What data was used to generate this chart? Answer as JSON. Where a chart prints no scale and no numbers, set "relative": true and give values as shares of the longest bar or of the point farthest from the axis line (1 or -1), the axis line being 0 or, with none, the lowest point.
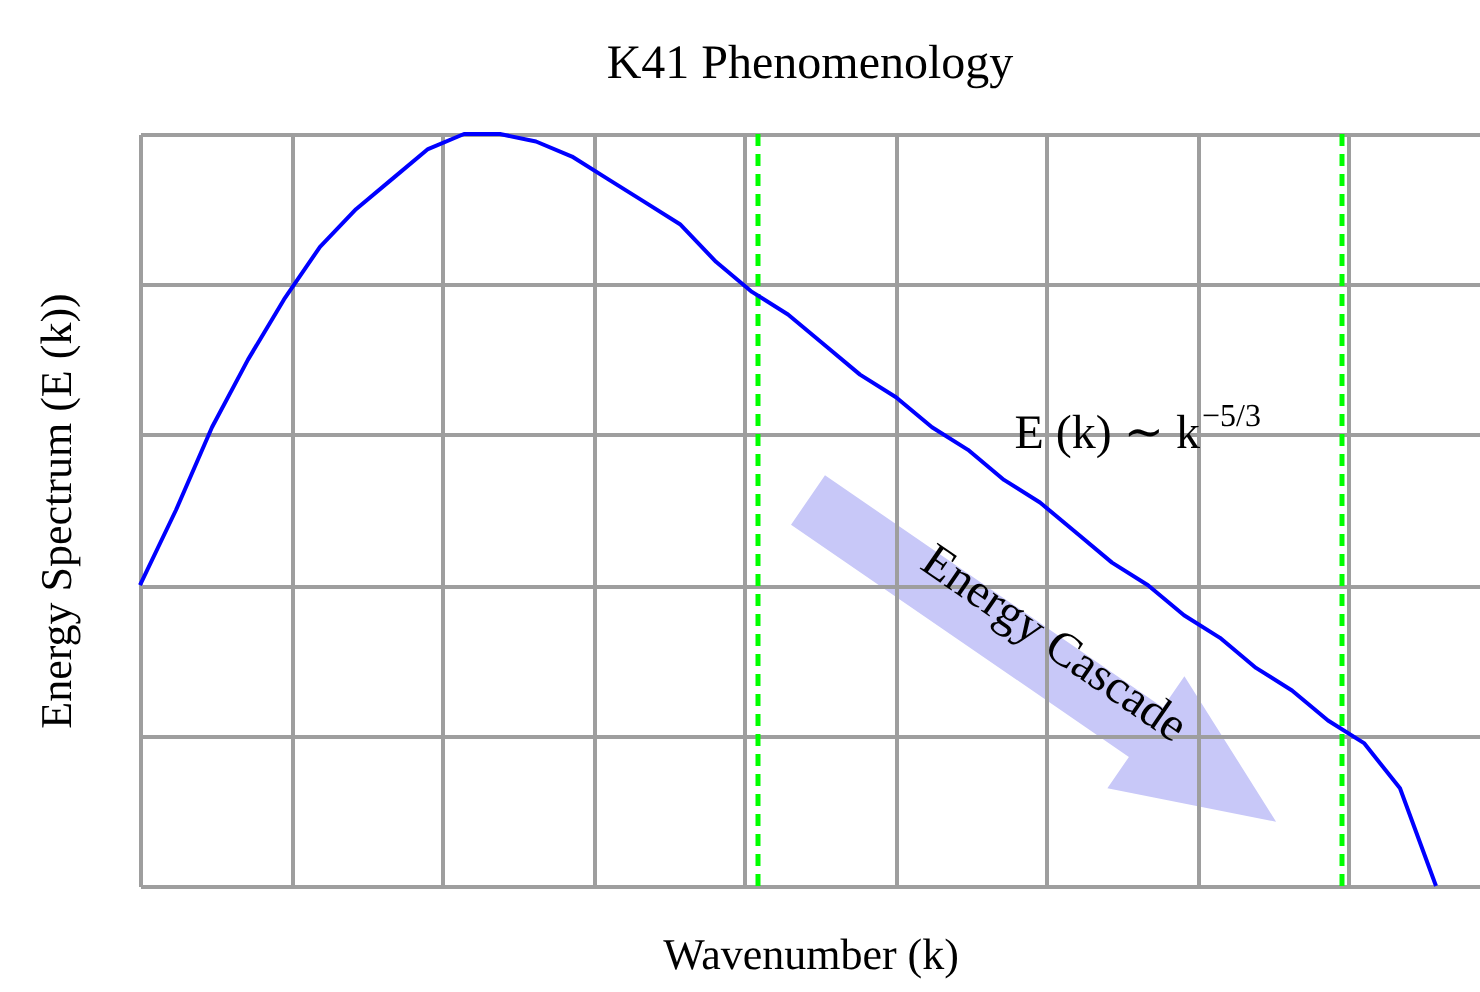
{
  "chart_data": {
    "type": "line",
    "title": "K41 Phenomenology",
    "xlabel": "Wavenumber (k)",
    "ylabel": "Energy Spectrum (E (k))",
    "relative": true,
    "grid": true,
    "categories": [
      null,
      null,
      null,
      null,
      null,
      null,
      null,
      null,
      null,
      null,
      null,
      null,
      null,
      null,
      null,
      null,
      null,
      null,
      null,
      null,
      null,
      null,
      null,
      null,
      null,
      null,
      null,
      null,
      null,
      null,
      null,
      null,
      null,
      null,
      null,
      null,
      null
    ],
    "series": [
      {
        "color": "#0000ff",
        "values": [
          0.4,
          0.5,
          0.61,
          0.7,
          0.78,
          0.85,
          0.9,
          0.94,
          0.98,
          1.0,
          1.0,
          0.99,
          0.97,
          0.94,
          0.91,
          0.88,
          0.83,
          0.79,
          0.76,
          0.72,
          0.68,
          0.65,
          0.61,
          0.58,
          0.54,
          0.51,
          0.47,
          0.43,
          0.4,
          0.36,
          0.33,
          0.29,
          0.26,
          0.22,
          0.19,
          0.13,
          0
        ]
      }
    ],
    "annotations": [
      "E (k) ∼ k$^{−5/3}$",
      "Energy Cascade"
    ]
  }
}
